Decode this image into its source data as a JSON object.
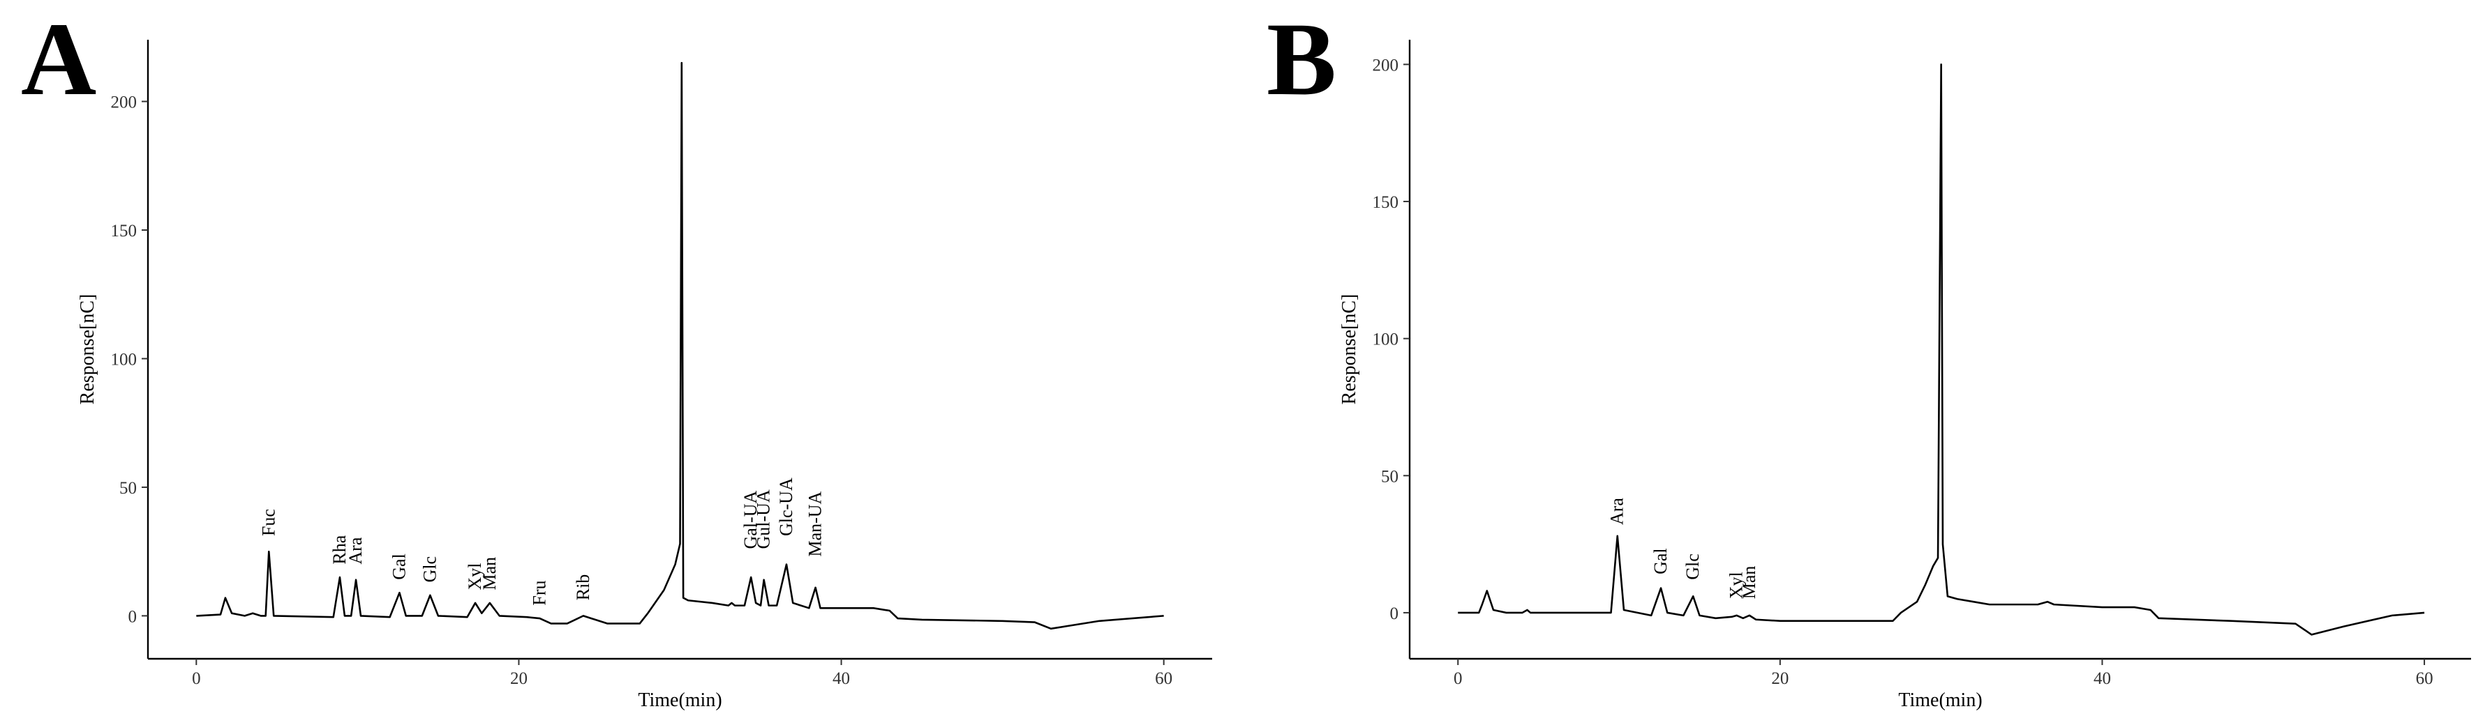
{
  "chart_data": [
    {
      "type": "line",
      "label": "A",
      "x_label": "Time(min)",
      "y_label": "Response[nC]",
      "xlim": [
        -3,
        63
      ],
      "ylim": [
        -16.7,
        224
      ],
      "xticks": [
        0,
        20,
        40,
        60
      ],
      "yticks": [
        0,
        50,
        100,
        150,
        200
      ],
      "x": [
        0,
        1.5,
        1.8,
        2.2,
        3,
        3.5,
        4,
        4.3,
        4.5,
        4.8,
        8.5,
        8.9,
        9.2,
        9.6,
        9.9,
        10.2,
        12,
        12.6,
        13,
        14,
        14.5,
        15,
        16.8,
        17.3,
        17.7,
        18.2,
        18.8,
        20.5,
        21.3,
        22,
        23,
        24,
        24.5,
        25.5,
        27.5,
        28,
        29,
        29.7,
        30,
        30.1,
        30.2,
        30.5,
        32,
        33,
        33.2,
        33.4,
        34,
        34.4,
        34.7,
        35,
        35.2,
        35.5,
        36,
        36.6,
        37,
        38,
        38.4,
        38.7,
        42,
        43,
        43.5,
        45,
        50,
        52,
        53,
        54,
        56,
        60
      ],
      "series": [
        {
          "color": "#000000",
          "values": [
            0,
            0.5,
            7,
            1,
            0,
            1,
            0,
            0,
            25,
            0,
            -0.5,
            15,
            0,
            0,
            14,
            0,
            -0.5,
            9,
            0,
            0,
            8,
            0,
            -0.5,
            5,
            1,
            5,
            0,
            -0.5,
            -1,
            -3,
            -3,
            0,
            -1,
            -3,
            -3,
            1,
            10,
            20,
            28,
            215,
            7,
            6,
            5,
            4,
            5,
            4,
            4,
            15,
            5,
            4,
            14,
            4,
            4,
            20,
            5,
            3,
            11,
            3,
            3,
            2,
            -1,
            -1.5,
            -2,
            -2.5,
            -5,
            -4,
            -2,
            0
          ]
        }
      ],
      "annotations": [
        {
          "text": "Fuc",
          "x": 4.5,
          "y": 31
        },
        {
          "text": "Rha",
          "x": 8.9,
          "y": 20
        },
        {
          "text": "Ara",
          "x": 9.9,
          "y": 20
        },
        {
          "text": "Gal",
          "x": 12.6,
          "y": 14
        },
        {
          "text": "Glc",
          "x": 14.5,
          "y": 13
        },
        {
          "text": "Xyl",
          "x": 17.3,
          "y": 10
        },
        {
          "text": "Man",
          "x": 18.2,
          "y": 10
        },
        {
          "text": "Fru",
          "x": 21.3,
          "y": 4
        },
        {
          "text": "Rib",
          "x": 24,
          "y": 6
        },
        {
          "text": "Gal-UA",
          "x": 34.4,
          "y": 26
        },
        {
          "text": "Gul-UA",
          "x": 35.2,
          "y": 26
        },
        {
          "text": "Glc-UA",
          "x": 36.6,
          "y": 31
        },
        {
          "text": "Man-UA",
          "x": 38.4,
          "y": 23
        }
      ]
    },
    {
      "type": "line",
      "label": "B",
      "x_label": "Time(min)",
      "y_label": "Response[nC]",
      "xlim": [
        -3,
        62.9
      ],
      "ylim": [
        -16.8,
        209
      ],
      "xticks": [
        0,
        20,
        40,
        60
      ],
      "yticks": [
        0,
        50,
        100,
        150,
        200
      ],
      "x": [
        0,
        1.3,
        1.5,
        1.8,
        2.2,
        3,
        4,
        4.3,
        4.5,
        9.5,
        9.9,
        10.3,
        12,
        12.6,
        13,
        14,
        14.6,
        15,
        16,
        17,
        17.3,
        17.7,
        18.1,
        18.5,
        20,
        24,
        27,
        27.5,
        28.5,
        29,
        29.5,
        29.8,
        30,
        30.1,
        30.4,
        31,
        32,
        33,
        36,
        36.6,
        37,
        40,
        42,
        43,
        43.5,
        48,
        52,
        53,
        55,
        58,
        60
      ],
      "series": [
        {
          "color": "#000000",
          "values": [
            0,
            0,
            3,
            8,
            1,
            0,
            0,
            1,
            0,
            0,
            28,
            1,
            -1,
            9,
            0,
            -1,
            6,
            -1,
            -2,
            -1.5,
            -1,
            -2,
            -1,
            -2.5,
            -3,
            -3,
            -3,
            0,
            4,
            10,
            17,
            20,
            200,
            25,
            6,
            5,
            4,
            3,
            3,
            4,
            3,
            2,
            2,
            1,
            -2,
            -3,
            -4,
            -8,
            -5,
            -1,
            0
          ]
        }
      ],
      "annotations": [
        {
          "text": "Ara",
          "x": 9.9,
          "y": 32
        },
        {
          "text": "Gal",
          "x": 12.6,
          "y": 14
        },
        {
          "text": "Glc",
          "x": 14.6,
          "y": 12
        },
        {
          "text": "Xyl",
          "x": 17.3,
          "y": 5
        },
        {
          "text": "Man",
          "x": 18.1,
          "y": 5
        }
      ]
    }
  ]
}
